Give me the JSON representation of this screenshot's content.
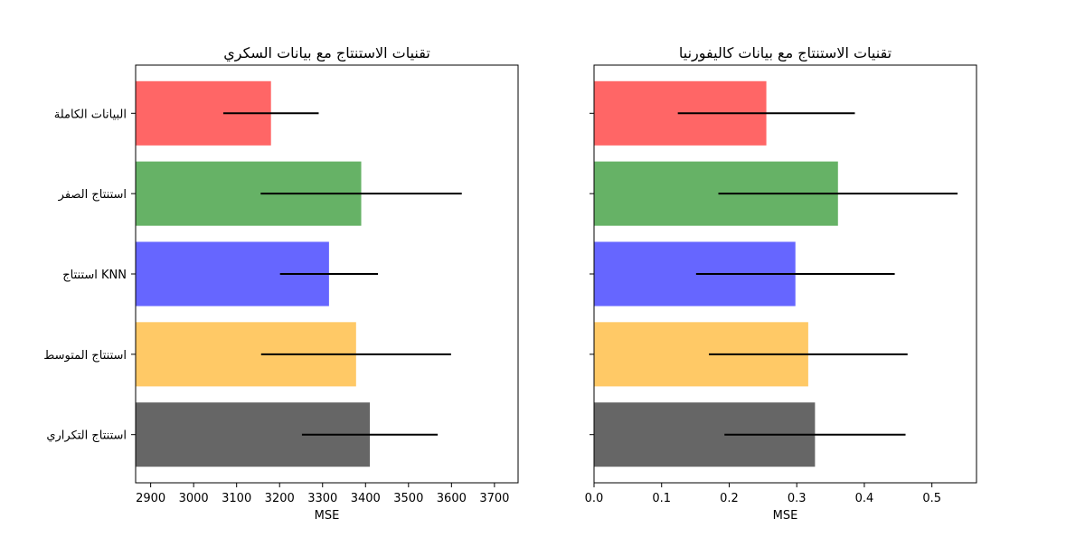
{
  "chart_data": [
    {
      "type": "bar",
      "orientation": "horizontal",
      "title": "تقنيات الاستنتاج مع بيانات السكري",
      "xlabel": "MSE",
      "ylabel": "",
      "xlim": [
        2865,
        3755
      ],
      "xticks": [
        2900,
        3000,
        3100,
        3200,
        3300,
        3400,
        3500,
        3600,
        3700
      ],
      "categories": [
        "البيانات الكاملة",
        "استنتاج الصفر",
        "استنتاج KNN",
        "استنتاج المتوسط",
        "استنتاج التكراري"
      ],
      "values": [
        3180,
        3390,
        3315,
        3378,
        3410
      ],
      "errors": [
        111,
        234,
        114,
        221,
        158
      ],
      "colors": [
        "#ff6666",
        "#66b266",
        "#6666ff",
        "#ffc966",
        "#666666"
      ],
      "grid": false,
      "show_category_labels": true
    },
    {
      "type": "bar",
      "orientation": "horizontal",
      "title": "تقنيات الاستنتاج مع بيانات كاليفورنيا",
      "xlabel": "MSE",
      "ylabel": "",
      "xlim": [
        0.0,
        0.566
      ],
      "xticks": [
        0.0,
        0.1,
        0.2,
        0.3,
        0.4,
        0.5
      ],
      "categories": [
        "البيانات الكاملة",
        "استنتاج الصفر",
        "استنتاج KNN",
        "استنتاج المتوسط",
        "استنتاج التكراري"
      ],
      "values": [
        0.255,
        0.361,
        0.298,
        0.317,
        0.327
      ],
      "errors": [
        0.131,
        0.177,
        0.147,
        0.147,
        0.134
      ],
      "colors": [
        "#ff6666",
        "#66b266",
        "#6666ff",
        "#ffc966",
        "#666666"
      ],
      "grid": false,
      "show_category_labels": false
    }
  ]
}
